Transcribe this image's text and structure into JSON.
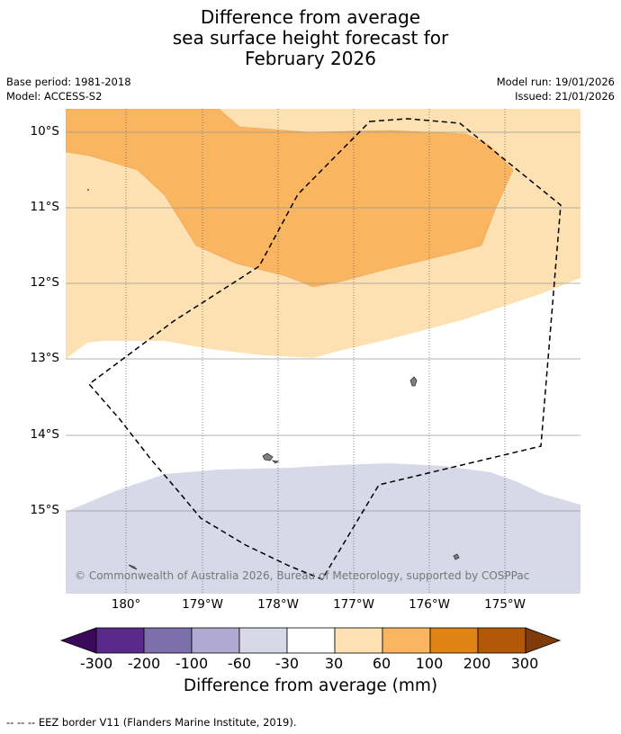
{
  "title": {
    "line1": "Difference from average",
    "line2": "sea surface height forecast for",
    "line3": "February 2026"
  },
  "meta": {
    "base_period": "Base period: 1981-2018",
    "model": "Model: ACCESS-S2",
    "model_run": "Model run: 19/01/2026",
    "issued": "Issued: 21/01/2026"
  },
  "axes": {
    "lat_labels": [
      "10°S",
      "11°S",
      "12°S",
      "13°S",
      "14°S",
      "15°S"
    ],
    "lon_labels": [
      "180°",
      "179°W",
      "178°W",
      "177°W",
      "176°W",
      "175°W"
    ]
  },
  "attribution": "© Commonwealth of Australia 2026, Bureau of Meteorology, supported by COSPPac",
  "colorbar": {
    "colors": [
      "#3c0a5a",
      "#5a2a8a",
      "#7d6fac",
      "#b0aad2",
      "#d7d8e8",
      "#ffffff",
      "#fde1b2",
      "#fab561",
      "#e08214",
      "#b35806",
      "#7f3b08"
    ],
    "tick_labels": [
      "-300",
      "-200",
      "-100",
      "-60",
      "-30",
      "30",
      "60",
      "100",
      "200",
      "300"
    ],
    "title": "Difference from average (mm)"
  },
  "footer": "--  --  -- EEZ border V11 (Flanders Marine Institute, 2019).",
  "chart_data": {
    "type": "filled-contour map",
    "title": "Difference from average sea surface height forecast for February 2026",
    "variable": "Sea surface height anomaly (mm)",
    "lat_range": [
      "16°S",
      "9.7°S"
    ],
    "lon_range": [
      "179.2°E",
      "174.2°W"
    ],
    "regions": [
      {
        "name": "north",
        "category": "60 to 100 mm"
      },
      {
        "name": "central band",
        "category": "30 to 60 mm"
      },
      {
        "name": "middle",
        "category": "-30 to 30 mm"
      },
      {
        "name": "south",
        "category": "-60 to -30 mm"
      }
    ],
    "overlay": "EEZ border (dashed)"
  }
}
